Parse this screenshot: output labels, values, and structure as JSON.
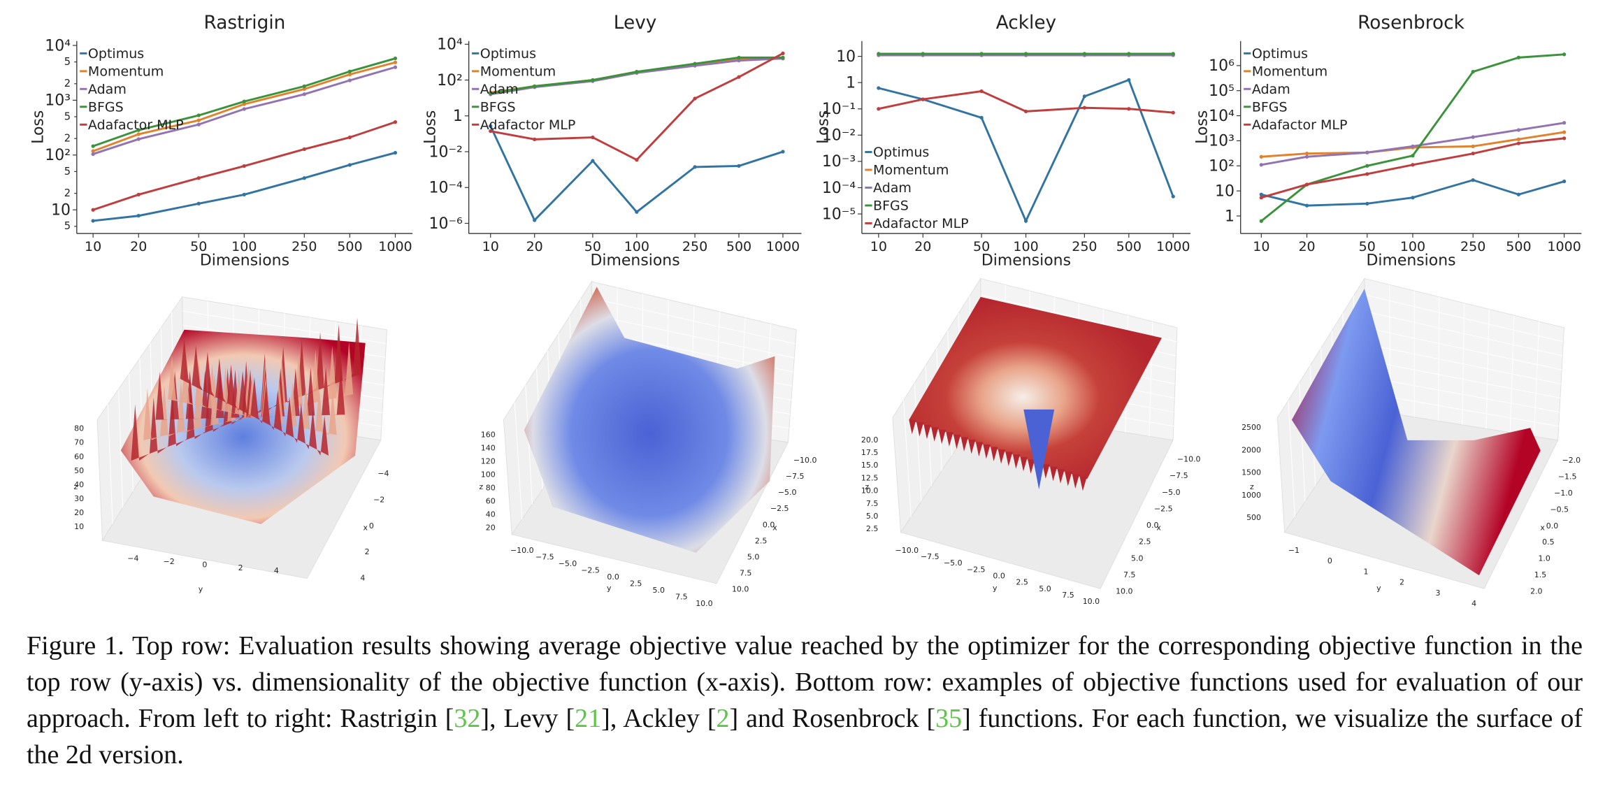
{
  "chart_data": [
    {
      "type": "line",
      "title": "Rastrigin",
      "xlabel": "Dimensions",
      "ylabel": "Loss",
      "xscale": "log",
      "yscale": "log",
      "legend": "upper left",
      "x": [
        10,
        20,
        50,
        100,
        250,
        500,
        1000
      ],
      "xlim": [
        7.8,
        1300
      ],
      "xticks": [
        10,
        20,
        50,
        100,
        250,
        500,
        1000
      ],
      "ylim": [
        3.7,
        12000
      ],
      "yticks": [
        5,
        10,
        {
          "value": 20,
          "label": "2"
        },
        {
          "value": 50,
          "label": "5"
        },
        {
          "value": 100,
          "label": "10²"
        },
        {
          "value": 200,
          "label": "2"
        },
        {
          "value": 500,
          "label": "5"
        },
        {
          "value": 1000,
          "label": "10³"
        },
        {
          "value": 2000,
          "label": "2"
        },
        {
          "value": 5000,
          "label": "5"
        },
        {
          "value": 10000,
          "label": "10⁴"
        }
      ],
      "series": [
        {
          "name": "Optimus",
          "color": "#3274a1",
          "values": [
            6.3,
            7.8,
            13,
            19,
            38,
            66,
            110
          ]
        },
        {
          "name": "Momentum",
          "color": "#e1812c",
          "values": [
            118,
            240,
            430,
            850,
            1600,
            2950,
            4900
          ]
        },
        {
          "name": "Adam",
          "color": "#9372b2",
          "values": [
            104,
            195,
            360,
            690,
            1290,
            2300,
            4000
          ]
        },
        {
          "name": "BFGS",
          "color": "#3a923a",
          "values": [
            145,
            285,
            530,
            950,
            1800,
            3350,
            5800
          ]
        },
        {
          "name": "Adafactor MLP",
          "color": "#c03d3e",
          "values": [
            10,
            19,
            38,
            63,
            128,
            210,
            400
          ]
        }
      ]
    },
    {
      "type": "line",
      "title": "Levy",
      "xlabel": "Dimensions",
      "ylabel": "Loss",
      "xscale": "log",
      "yscale": "log",
      "legend": "upper left",
      "x": [
        10,
        20,
        50,
        100,
        250,
        500,
        1000
      ],
      "xlim": [
        7.1,
        1340
      ],
      "xticks": [
        10,
        20,
        50,
        100,
        250,
        500,
        1000
      ],
      "ylim": [
        2.7e-07,
        15000
      ],
      "yticks": [
        {
          "value": 1e-06,
          "label": "10⁻⁶"
        },
        {
          "value": 0.0001,
          "label": "10⁻⁴"
        },
        {
          "value": 0.01,
          "label": "10⁻²"
        },
        1,
        {
          "value": 100,
          "label": "10²"
        },
        {
          "value": 10000,
          "label": "10⁴"
        }
      ],
      "series": [
        {
          "name": "Optimus",
          "color": "#3274a1",
          "values": [
            0.27,
            1.5e-06,
            0.0031,
            4.3e-06,
            0.0014,
            0.0016,
            0.01
          ]
        },
        {
          "name": "Momentum",
          "color": "#e1812c",
          "values": [
            20,
            45,
            100,
            290,
            720,
            1400,
            1600
          ]
        },
        {
          "name": "Adam",
          "color": "#9372b2",
          "values": [
            16,
            40,
            87,
            250,
            630,
            1230,
            1600
          ]
        },
        {
          "name": "BFGS",
          "color": "#3a923a",
          "values": [
            18,
            45,
            100,
            290,
            820,
            1800,
            1800
          ]
        },
        {
          "name": "Adafactor MLP",
          "color": "#c03d3e",
          "values": [
            0.14,
            0.049,
            0.063,
            0.0035,
            9.3,
            148,
            3100
          ]
        }
      ]
    },
    {
      "type": "line",
      "title": "Ackley",
      "xlabel": "Dimensions",
      "ylabel": "Loss",
      "xscale": "log",
      "yscale": "log",
      "legend": "lower left",
      "x": [
        10,
        20,
        50,
        100,
        250,
        500,
        1000
      ],
      "xlim": [
        7.7,
        1310
      ],
      "xticks": [
        10,
        20,
        50,
        100,
        250,
        500,
        1000
      ],
      "ylim": [
        1.8e-06,
        38
      ],
      "yticks": [
        {
          "value": 1e-05,
          "label": "10⁻⁵"
        },
        {
          "value": 0.0001,
          "label": "10⁻⁴"
        },
        {
          "value": 0.001,
          "label": "10⁻³"
        },
        {
          "value": 0.01,
          "label": "10⁻²"
        },
        {
          "value": 0.1,
          "label": "10⁻¹"
        },
        1,
        10
      ],
      "series": [
        {
          "name": "Optimus",
          "color": "#3274a1",
          "values": [
            0.62,
            0.23,
            0.046,
            5.4e-06,
            0.3,
            1.26,
            4.6e-05
          ]
        },
        {
          "name": "Momentum",
          "color": "#e1812c",
          "values": [
            12,
            12,
            12,
            12,
            12,
            12,
            12
          ]
        },
        {
          "name": "Adam",
          "color": "#9372b2",
          "values": [
            11,
            11,
            11,
            11,
            11,
            11,
            11
          ]
        },
        {
          "name": "BFGS",
          "color": "#3a923a",
          "values": [
            12.5,
            12.5,
            12.5,
            12.5,
            12.5,
            12.5,
            12.5
          ]
        },
        {
          "name": "Adafactor MLP",
          "color": "#c03d3e",
          "values": [
            0.1,
            0.23,
            0.47,
            0.08,
            0.11,
            0.1,
            0.072
          ]
        }
      ]
    },
    {
      "type": "line",
      "title": "Rosenbrock",
      "xlabel": "Dimensions",
      "ylabel": "Loss",
      "xscale": "log",
      "yscale": "log",
      "legend": "upper left",
      "x": [
        10,
        20,
        50,
        100,
        250,
        500,
        1000
      ],
      "xlim": [
        7.3,
        1300
      ],
      "xticks": [
        10,
        20,
        50,
        100,
        250,
        500,
        1000
      ],
      "ylim": [
        0.2,
        9500000
      ],
      "yticks": [
        1,
        10,
        {
          "value": 100,
          "label": "10²"
        },
        {
          "value": 1000,
          "label": "10³"
        },
        {
          "value": 10000,
          "label": "10⁴"
        },
        {
          "value": 100000,
          "label": "10⁵"
        },
        {
          "value": 1000000,
          "label": "10⁶"
        }
      ],
      "series": [
        {
          "name": "Optimus",
          "color": "#3274a1",
          "values": [
            7.2,
            2.6,
            3.1,
            5.4,
            27,
            7.2,
            24
          ]
        },
        {
          "name": "Momentum",
          "color": "#e1812c",
          "values": [
            230,
            310,
            340,
            540,
            600,
            1150,
            2200
          ]
        },
        {
          "name": "Adam",
          "color": "#9372b2",
          "values": [
            110,
            230,
            340,
            600,
            1400,
            2700,
            5200
          ]
        },
        {
          "name": "BFGS",
          "color": "#3a923a",
          "values": [
            0.63,
            18,
            100,
            255,
            570000,
            2100000,
            2800000
          ]
        },
        {
          "name": "Adafactor MLP",
          "color": "#c03d3e",
          "values": [
            5.4,
            18,
            47,
            110,
            310,
            790,
            1260
          ]
        }
      ]
    }
  ],
  "surfaces": [
    {
      "xlabel": "x",
      "ylabel": "y",
      "zlabel": "z",
      "zticks": [
        10,
        20,
        30,
        40,
        50,
        60,
        70,
        80
      ],
      "xticks": [
        {
          "value": -4,
          "label": "−4"
        },
        {
          "value": -2,
          "label": "−2"
        },
        0,
        2,
        4
      ],
      "yticks": [
        {
          "value": -4,
          "label": "−4"
        },
        {
          "value": -2,
          "label": "−2"
        },
        0,
        2,
        4
      ]
    },
    {
      "xlabel": "x",
      "ylabel": "y",
      "zlabel": "z",
      "zticks": [
        20,
        40,
        60,
        80,
        100,
        120,
        140,
        160
      ],
      "xticks": [
        {
          "value": -10,
          "label": "−10.0"
        },
        {
          "value": -7.5,
          "label": "−7.5"
        },
        {
          "value": -5,
          "label": "−5.0"
        },
        {
          "value": -2.5,
          "label": "−2.5"
        },
        {
          "value": 0,
          "label": "0.0"
        },
        2.5,
        {
          "value": 5,
          "label": "5.0"
        },
        7.5,
        {
          "value": 10,
          "label": "10.0"
        }
      ],
      "yticks": [
        {
          "value": -10,
          "label": "−10.0"
        },
        {
          "value": -7.5,
          "label": "−7.5"
        },
        {
          "value": -5,
          "label": "−5.0"
        },
        {
          "value": -2.5,
          "label": "−2.5"
        },
        {
          "value": 0,
          "label": "0.0"
        },
        2.5,
        {
          "value": 5,
          "label": "5.0"
        },
        7.5,
        {
          "value": 10,
          "label": "10.0"
        }
      ]
    },
    {
      "xlabel": "x",
      "ylabel": "y",
      "zlabel": "z",
      "zticks": [
        2.5,
        {
          "value": 5,
          "label": "5.0"
        },
        7.5,
        {
          "value": 10,
          "label": "10.0"
        },
        12.5,
        {
          "value": 15,
          "label": "15.0"
        },
        17.5,
        {
          "value": 20,
          "label": "20.0"
        }
      ],
      "xticks": [
        {
          "value": -10,
          "label": "−10.0"
        },
        {
          "value": -7.5,
          "label": "−7.5"
        },
        {
          "value": -5,
          "label": "−5.0"
        },
        {
          "value": -2.5,
          "label": "−2.5"
        },
        {
          "value": 0,
          "label": "0.0"
        },
        2.5,
        {
          "value": 5,
          "label": "5.0"
        },
        7.5,
        {
          "value": 10,
          "label": "10.0"
        }
      ],
      "yticks": [
        {
          "value": -10,
          "label": "−10.0"
        },
        {
          "value": -7.5,
          "label": "−7.5"
        },
        {
          "value": -5,
          "label": "−5.0"
        },
        {
          "value": -2.5,
          "label": "−2.5"
        },
        {
          "value": 0,
          "label": "0.0"
        },
        2.5,
        {
          "value": 5,
          "label": "5.0"
        },
        7.5,
        {
          "value": 10,
          "label": "10.0"
        }
      ]
    },
    {
      "xlabel": "x",
      "ylabel": "y",
      "zlabel": "z",
      "zticks": [
        500,
        1000,
        1500,
        2000,
        2500
      ],
      "xticks": [
        {
          "value": -2,
          "label": "−2.0"
        },
        {
          "value": -1.5,
          "label": "−1.5"
        },
        {
          "value": -1,
          "label": "−1.0"
        },
        {
          "value": -0.5,
          "label": "−0.5"
        },
        {
          "value": 0,
          "label": "0.0"
        },
        0.5,
        {
          "value": 1,
          "label": "1.0"
        },
        1.5,
        {
          "value": 2,
          "label": "2.0"
        }
      ],
      "yticks": [
        {
          "value": -1,
          "label": "−1"
        },
        0,
        1,
        2,
        3,
        4
      ]
    }
  ],
  "caption": {
    "parts": [
      "Figure 1. Top row: Evaluation results showing average objective value reached by the optimizer for the corresponding objective function in the top row (y-axis) vs. dimensionality of the objective function (x-axis). Bottom row: examples of objective functions used for evaluation of our approach. From left to right: Rastrigin [",
      "], Levy [",
      "], Ackley [",
      "] and Rosenbrock [",
      "] functions. For each function, we visualize the surface of the 2d version."
    ],
    "citations": [
      "32",
      "21",
      "2",
      "35"
    ]
  }
}
